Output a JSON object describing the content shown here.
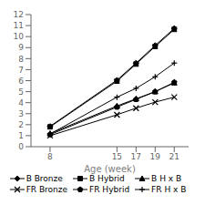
{
  "chart_data": {
    "type": "line",
    "xlabel": "Age (week)",
    "x": [
      8,
      15,
      17,
      19,
      21
    ],
    "xlim": [
      6,
      22.5
    ],
    "xticks": [
      8,
      15,
      17,
      19,
      21
    ],
    "ylim": [
      0,
      12
    ],
    "yticks": [
      0,
      1,
      2,
      3,
      4,
      5,
      6,
      7,
      8,
      9,
      10,
      11,
      12
    ],
    "grid": false,
    "legend": "bottom",
    "color": "#000000",
    "series": [
      {
        "name": "B Bronze",
        "marker": "diamond",
        "line_style": "solid",
        "values": [
          1.85,
          6.05,
          7.6,
          9.2,
          10.75
        ]
      },
      {
        "name": "B Hybrid",
        "marker": "square",
        "line_style": "solid",
        "values": [
          1.8,
          5.95,
          7.5,
          9.1,
          10.65
        ]
      },
      {
        "name": "B H x B",
        "marker": "triangle",
        "line_style": "solid",
        "values": [
          1.2,
          3.7,
          4.35,
          5.0,
          5.8
        ]
      },
      {
        "name": "FR Bronze",
        "marker": "x",
        "line_style": "solid",
        "values": [
          1.0,
          2.9,
          3.5,
          4.05,
          4.5
        ]
      },
      {
        "name": "FR Hybrid",
        "marker": "pentagon",
        "line_style": "solid",
        "values": [
          1.1,
          3.6,
          4.3,
          5.0,
          5.85
        ]
      },
      {
        "name": "FR H x B",
        "marker": "plus",
        "line_style": "solid",
        "values": [
          1.15,
          4.5,
          5.3,
          6.35,
          7.6
        ]
      }
    ]
  }
}
